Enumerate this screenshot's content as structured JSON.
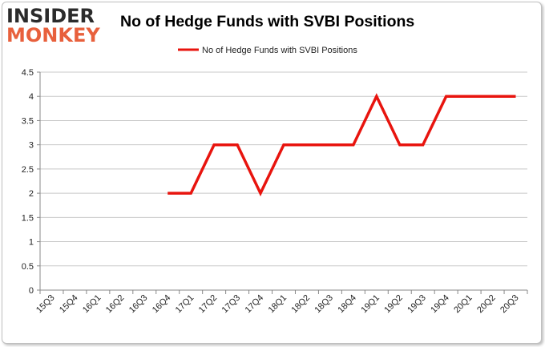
{
  "logo": {
    "line1": "INSIDER",
    "line2": "MONKEY"
  },
  "chart_data": {
    "type": "line",
    "title": "No of Hedge Funds with SVBI Positions",
    "xlabel": "",
    "ylabel": "",
    "categories": [
      "15Q3",
      "15Q4",
      "16Q1",
      "16Q2",
      "16Q3",
      "16Q4",
      "17Q1",
      "17Q2",
      "17Q3",
      "17Q4",
      "18Q1",
      "18Q2",
      "18Q3",
      "18Q4",
      "19Q1",
      "19Q2",
      "19Q3",
      "19Q4",
      "20Q1",
      "20Q2",
      "20Q3"
    ],
    "series": [
      {
        "name": "No of Hedge Funds with SVBI Positions",
        "color": "#e8140e",
        "values": [
          null,
          null,
          null,
          null,
          null,
          2,
          2,
          3,
          3,
          2,
          3,
          3,
          3,
          3,
          4,
          3,
          3,
          4,
          4,
          4,
          4
        ]
      }
    ],
    "ylim": [
      0,
      4.5
    ],
    "yticks": [
      "0",
      "0.5",
      "1",
      "1.5",
      "2",
      "2.5",
      "3",
      "3.5",
      "4",
      "4.5"
    ],
    "grid": true,
    "legend": "top"
  }
}
